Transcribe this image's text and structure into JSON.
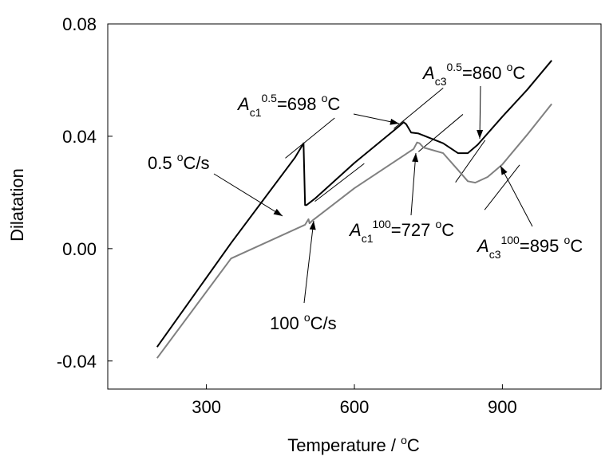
{
  "chart_data": {
    "type": "line",
    "xlabel": "Temperature / ",
    "xlabel_unit_sup": "o",
    "xlabel_unit": "C",
    "ylabel": "Dilatation",
    "xlim": [
      100,
      1100
    ],
    "ylim": [
      -0.05,
      0.08
    ],
    "x_ticks": [
      300,
      600,
      900
    ],
    "x_tick_labels": [
      "300",
      "600",
      "900"
    ],
    "y_ticks": [
      -0.04,
      0.0,
      0.04,
      0.08
    ],
    "y_tick_labels": [
      "-0.04",
      "0.00",
      "0.04",
      "0.08"
    ],
    "grid": false,
    "series": [
      {
        "name": "0.5 oC/s",
        "color": "#000000",
        "x": [
          200,
          350,
          480,
          497,
          500,
          503,
          520,
          600,
          690,
          700,
          705,
          715,
          730,
          780,
          810,
          830,
          850,
          900,
          950,
          1000
        ],
        "y": [
          -0.035,
          0.002,
          0.0325,
          0.0375,
          0.0155,
          0.0155,
          0.0178,
          0.0305,
          0.0435,
          0.045,
          0.0443,
          0.0413,
          0.041,
          0.0375,
          0.034,
          0.034,
          0.037,
          0.047,
          0.0565,
          0.067
        ]
      },
      {
        "name": "100 oC/s",
        "color": "#808080",
        "x": [
          200,
          350,
          500,
          507,
          509,
          515,
          600,
          720,
          727,
          732,
          740,
          780,
          810,
          830,
          845,
          870,
          900,
          950,
          1000
        ],
        "y": [
          -0.039,
          -0.0035,
          0.0085,
          0.0105,
          0.009,
          0.01,
          0.0215,
          0.0355,
          0.0378,
          0.0375,
          0.036,
          0.034,
          0.028,
          0.024,
          0.0235,
          0.0255,
          0.03,
          0.0405,
          0.0515
        ]
      }
    ],
    "annotations": [
      {
        "parts": [
          [
            "A",
            "i"
          ],
          [
            "c1",
            "sub"
          ],
          [
            "0.5",
            "sup"
          ],
          [
            "=698 ",
            "n"
          ],
          [
            "o",
            "sup"
          ],
          [
            "C",
            "n"
          ]
        ],
        "label_x": 298,
        "label_y": 138,
        "arrow": [
          [
            443,
            143
          ],
          [
            500,
            155
          ]
        ]
      },
      {
        "parts": [
          [
            "A",
            "i"
          ],
          [
            "c3",
            "sub"
          ],
          [
            "0.5",
            "sup"
          ],
          [
            "=860 ",
            "n"
          ],
          [
            "o",
            "sup"
          ],
          [
            "C",
            "n"
          ]
        ],
        "label_x": 530,
        "label_y": 99,
        "arrow": [
          [
            602,
            108
          ],
          [
            601,
            174
          ]
        ]
      },
      {
        "parts": [
          [
            "0.5 ",
            "n"
          ],
          [
            "o",
            "sup"
          ],
          [
            "C/s",
            "n"
          ]
        ],
        "label_x": 185,
        "label_y": 212,
        "arrow": [
          [
            268,
            218
          ],
          [
            354,
            271
          ]
        ]
      },
      {
        "parts": [
          [
            "A",
            "i"
          ],
          [
            "c1",
            "sub"
          ],
          [
            "100",
            "sup"
          ],
          [
            "=727 ",
            "n"
          ],
          [
            "o",
            "sup"
          ],
          [
            "C",
            "n"
          ]
        ],
        "label_x": 438,
        "label_y": 296,
        "arrow": [
          [
            515,
            270
          ],
          [
            521,
            192
          ]
        ]
      },
      {
        "parts": [
          [
            "A",
            "i"
          ],
          [
            "c3",
            "sub"
          ],
          [
            "100",
            "sup"
          ],
          [
            "=895 ",
            "n"
          ],
          [
            "o",
            "sup"
          ],
          [
            "C",
            "n"
          ]
        ],
        "label_x": 598,
        "label_y": 316,
        "arrow": [
          [
            667,
            284
          ],
          [
            627,
            208
          ]
        ]
      },
      {
        "parts": [
          [
            "100 ",
            "n"
          ],
          [
            "o",
            "sup"
          ],
          [
            "C/s",
            "n"
          ]
        ],
        "label_x": 338,
        "label_y": 413,
        "arrow": [
          [
            381,
            380
          ],
          [
            393,
            277
          ]
        ]
      }
    ],
    "tangent_lines": [
      {
        "from": [
          460,
          0.0322
        ],
        "to": [
          560,
          0.0465
        ]
      },
      {
        "from": [
          680,
          0.0427
        ],
        "to": [
          780,
          0.0572
        ]
      },
      {
        "from": [
          805,
          0.0236
        ],
        "to": [
          865,
          0.0386
        ]
      },
      {
        "from": [
          520,
          0.0168
        ],
        "to": [
          620,
          0.0303
        ]
      },
      {
        "from": [
          730,
          0.0345
        ],
        "to": [
          820,
          0.0478
        ]
      },
      {
        "from": [
          864,
          0.0138
        ],
        "to": [
          935,
          0.0298
        ]
      }
    ]
  }
}
